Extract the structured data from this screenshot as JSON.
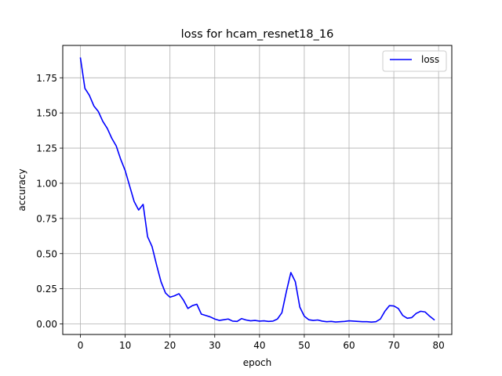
{
  "chart_data": {
    "type": "line",
    "title": "loss for hcam_resnet18_16",
    "xlabel": "epoch",
    "ylabel": "accuracy",
    "xlim": [
      -3.95,
      82.95
    ],
    "ylim": [
      -0.075,
      1.98
    ],
    "xticks": [
      0,
      10,
      20,
      30,
      40,
      50,
      60,
      70,
      80
    ],
    "yticks": [
      0.0,
      0.25,
      0.5,
      0.75,
      1.0,
      1.25,
      1.5,
      1.75
    ],
    "ytick_labels": [
      "0.00",
      "0.25",
      "0.50",
      "0.75",
      "1.00",
      "1.25",
      "1.50",
      "1.75"
    ],
    "grid": true,
    "legend_position": "top-right",
    "series": [
      {
        "name": "loss",
        "color": "#0000ff",
        "x": [
          0,
          1,
          2,
          3,
          4,
          5,
          6,
          7,
          8,
          9,
          10,
          11,
          12,
          13,
          14,
          15,
          16,
          17,
          18,
          19,
          20,
          21,
          22,
          23,
          24,
          25,
          26,
          27,
          28,
          29,
          30,
          31,
          32,
          33,
          34,
          35,
          36,
          37,
          38,
          39,
          40,
          41,
          42,
          43,
          44,
          45,
          46,
          47,
          48,
          49,
          50,
          51,
          52,
          53,
          54,
          55,
          56,
          57,
          58,
          59,
          60,
          61,
          62,
          63,
          64,
          65,
          66,
          67,
          68,
          69,
          70,
          71,
          72,
          73,
          74,
          75,
          76,
          77,
          78,
          79
        ],
        "values": [
          1.89,
          1.675,
          1.625,
          1.55,
          1.51,
          1.44,
          1.39,
          1.32,
          1.265,
          1.17,
          1.09,
          0.98,
          0.87,
          0.81,
          0.85,
          0.62,
          0.55,
          0.42,
          0.3,
          0.22,
          0.19,
          0.2,
          0.215,
          0.17,
          0.11,
          0.13,
          0.14,
          0.07,
          0.06,
          0.05,
          0.035,
          0.025,
          0.03,
          0.035,
          0.02,
          0.018,
          0.038,
          0.028,
          0.022,
          0.025,
          0.02,
          0.022,
          0.018,
          0.02,
          0.035,
          0.08,
          0.23,
          0.365,
          0.3,
          0.12,
          0.055,
          0.03,
          0.025,
          0.028,
          0.02,
          0.016,
          0.018,
          0.014,
          0.016,
          0.018,
          0.022,
          0.02,
          0.018,
          0.016,
          0.016,
          0.013,
          0.016,
          0.035,
          0.09,
          0.13,
          0.128,
          0.11,
          0.06,
          0.04,
          0.045,
          0.075,
          0.09,
          0.085,
          0.055,
          0.03
        ]
      }
    ]
  }
}
